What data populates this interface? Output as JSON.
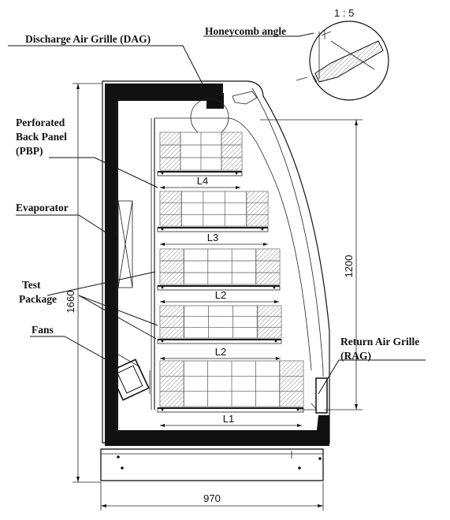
{
  "labels": {
    "dag": "Discharge Air Grille (DAG)",
    "honeycomb": "Honeycomb angle",
    "scale": "1 : 5",
    "pbp_line1": "Perforated",
    "pbp_line2": "Back Panel",
    "pbp_line3": "(PBP)",
    "evaporator": "Evaporator",
    "test_line1": "Test",
    "test_line2": "Package",
    "fans": "Fans",
    "rag_line1": "Return Air Grille",
    "rag_line2": "(RAG)"
  },
  "dimensions": {
    "height_total": "1660",
    "height_opening": "1200",
    "width_total": "970"
  },
  "shelves": {
    "l4": "L4",
    "l3": "L3",
    "l2_upper": "L2",
    "l2_lower": "L2",
    "l1": "L1"
  },
  "colors": {
    "frame": "#111111",
    "line": "#222222",
    "hatch": "#9a9a9a"
  }
}
